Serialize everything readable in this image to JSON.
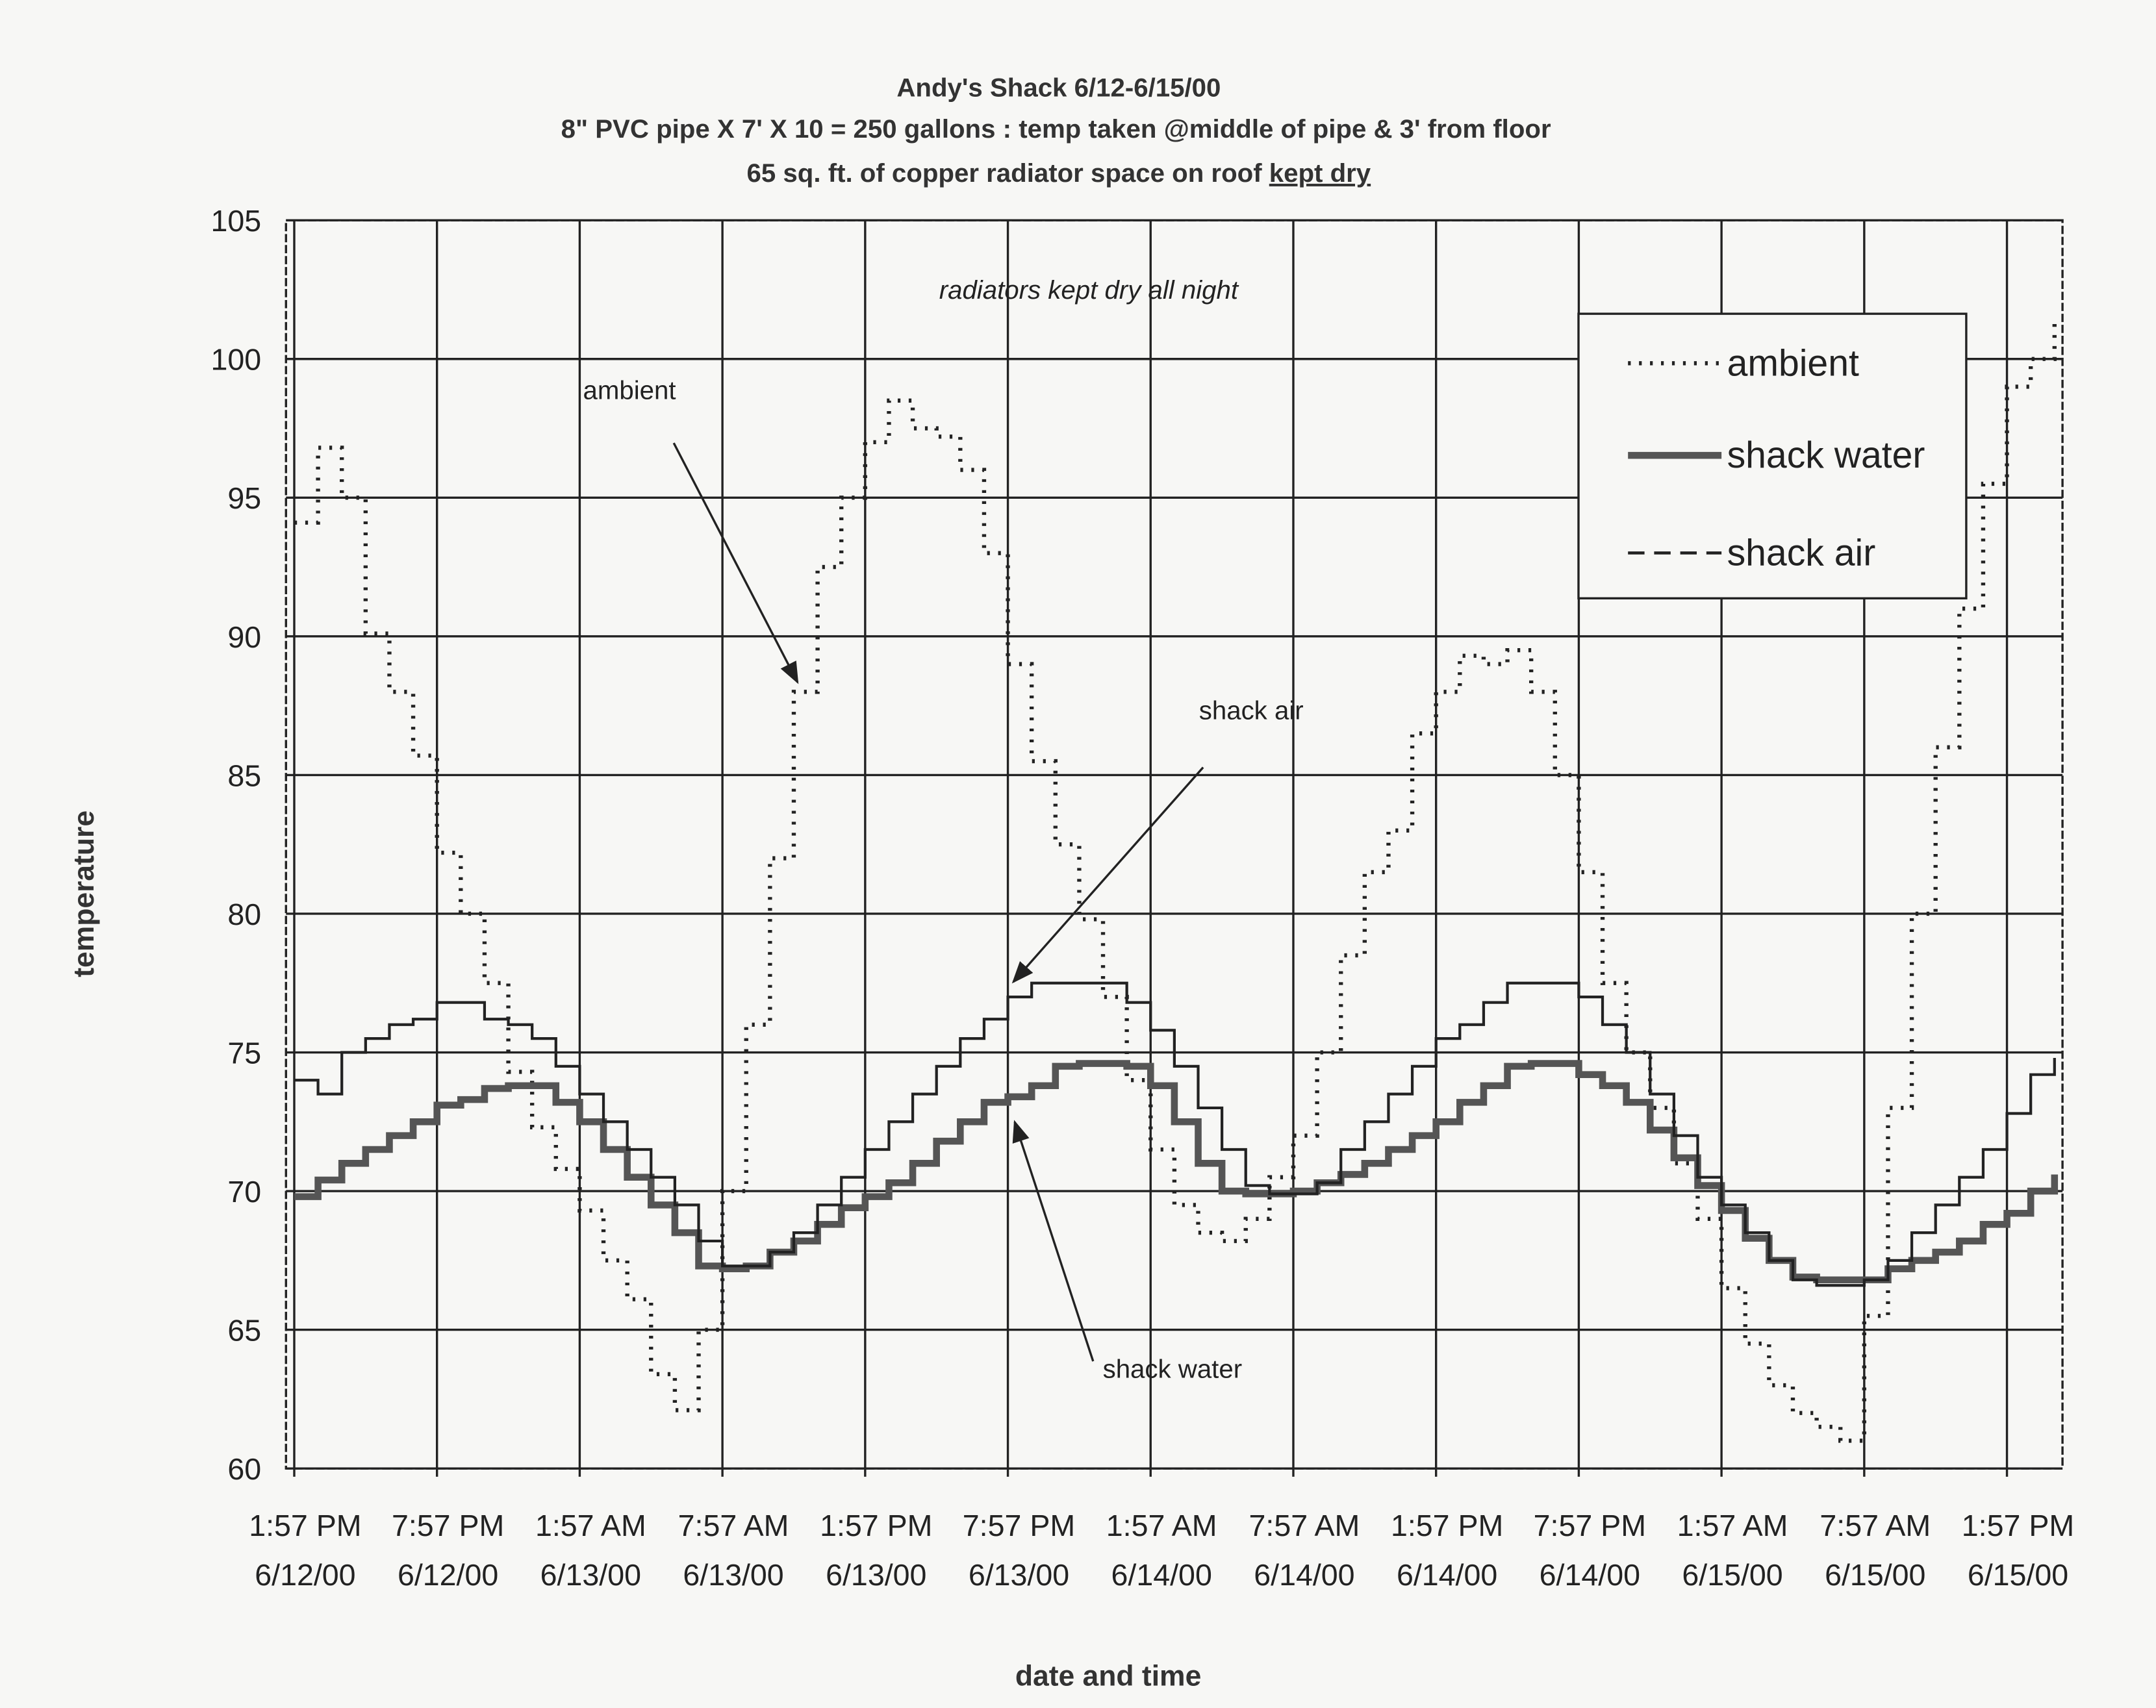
{
  "chart_data": {
    "type": "line",
    "title": "Andy's Shack   6/12-6/15/00",
    "subtitle_1": "8\" PVC pipe X 7' X 10 = 250 gallons : temp taken @middle of pipe & 3' from floor",
    "subtitle_2_pre": "65 sq. ft. of copper radiator space on roof ",
    "subtitle_2_underlined": "kept dry",
    "xlabel": "date and time",
    "ylabel": "temperature",
    "ylim": [
      60,
      105
    ],
    "yticks": [
      "60",
      "65",
      "70",
      "75",
      "80",
      "85",
      "90",
      "95",
      "100",
      "105"
    ],
    "xticks": [
      [
        "1:57 PM",
        "6/12/00"
      ],
      [
        "7:57 PM",
        "6/12/00"
      ],
      [
        "1:57 AM",
        "6/13/00"
      ],
      [
        "7:57 AM",
        "6/13/00"
      ],
      [
        "1:57 PM",
        "6/13/00"
      ],
      [
        "7:57 PM",
        "6/13/00"
      ],
      [
        "1:57 AM",
        "6/14/00"
      ],
      [
        "7:57 AM",
        "6/14/00"
      ],
      [
        "1:57 PM",
        "6/14/00"
      ],
      [
        "7:57 PM",
        "6/14/00"
      ],
      [
        "1:57 AM",
        "6/15/00"
      ],
      [
        "7:57 AM",
        "6/15/00"
      ],
      [
        "1:57 PM",
        "6/15/00"
      ]
    ],
    "grid": true,
    "legend_placement": "top-right",
    "x_start": "2000-06-12 13:57",
    "x_step": "1 hour",
    "series": [
      {
        "name": "ambient",
        "style": "dotted",
        "values": [
          94.1,
          96.8,
          95,
          90.1,
          88,
          85.7,
          82.2,
          80,
          77.5,
          74.3,
          72.3,
          70.8,
          69.3,
          67.5,
          66.1,
          63.4,
          62.1,
          65,
          70,
          76,
          82,
          88,
          92.5,
          95,
          97,
          98.5,
          97.5,
          97.2,
          96,
          93,
          89,
          85.5,
          82.5,
          79.8,
          77,
          74,
          71.5,
          69.5,
          68.5,
          68.2,
          69,
          70.5,
          72,
          75,
          78.5,
          81.5,
          83,
          86.5,
          88,
          89.3,
          89,
          89.5,
          88,
          85,
          81.5,
          77.5,
          75,
          73,
          71,
          69,
          66.5,
          64.5,
          63,
          62,
          61.5,
          61,
          65.5,
          73,
          80,
          86,
          91,
          95.5,
          99,
          100,
          101.3
        ]
      },
      {
        "name": "shack water",
        "style": "thick solid",
        "values": [
          69.8,
          70.4,
          71,
          71.5,
          72,
          72.5,
          73.1,
          73.3,
          73.7,
          73.8,
          73.8,
          73.2,
          72.5,
          71.5,
          70.5,
          69.5,
          68.5,
          67.3,
          67.2,
          67.3,
          67.8,
          68.2,
          68.8,
          69.4,
          69.8,
          70.3,
          71,
          71.8,
          72.5,
          73.2,
          73.4,
          73.8,
          74.5,
          74.6,
          74.6,
          74.5,
          73.8,
          72.5,
          71,
          70,
          69.9,
          69.9,
          70,
          70.3,
          70.6,
          71,
          71.5,
          72,
          72.5,
          73.2,
          73.8,
          74.5,
          74.6,
          74.6,
          74.2,
          73.8,
          73.2,
          72.2,
          71.2,
          70.2,
          69.3,
          68.3,
          67.5,
          66.9,
          66.8,
          66.8,
          66.8,
          67.2,
          67.5,
          67.8,
          68.2,
          68.8,
          69.2,
          70,
          70.6
        ]
      },
      {
        "name": "shack air",
        "style": "dashed",
        "values": [
          74,
          73.5,
          75,
          75.5,
          76,
          76.2,
          76.8,
          76.8,
          76.2,
          76,
          75.5,
          74.5,
          73.5,
          72.5,
          71.5,
          70.5,
          69.5,
          68.2,
          67.3,
          67.3,
          67.8,
          68.5,
          69.5,
          70.5,
          71.5,
          72.5,
          73.5,
          74.5,
          75.5,
          76.2,
          77,
          77.5,
          77.5,
          77.5,
          77.5,
          76.8,
          75.8,
          74.5,
          73,
          71.5,
          70.2,
          69.9,
          69.9,
          70.3,
          71.5,
          72.5,
          73.5,
          74.5,
          75.5,
          76,
          76.8,
          77.5,
          77.5,
          77.5,
          77,
          76,
          75,
          73.5,
          72,
          70.5,
          69.5,
          68.5,
          67.5,
          66.8,
          66.6,
          66.6,
          66.8,
          67.5,
          68.5,
          69.5,
          70.5,
          71.5,
          72.8,
          74.2,
          74.8
        ]
      }
    ],
    "annotations": {
      "top_note": "radiators kept dry all night",
      "ambient": "ambient",
      "shack_air": "shack air",
      "shack_water": "shack water"
    },
    "colors": {
      "ink": "#222222",
      "water": "#555555",
      "paper": "#f7f7f5"
    }
  }
}
